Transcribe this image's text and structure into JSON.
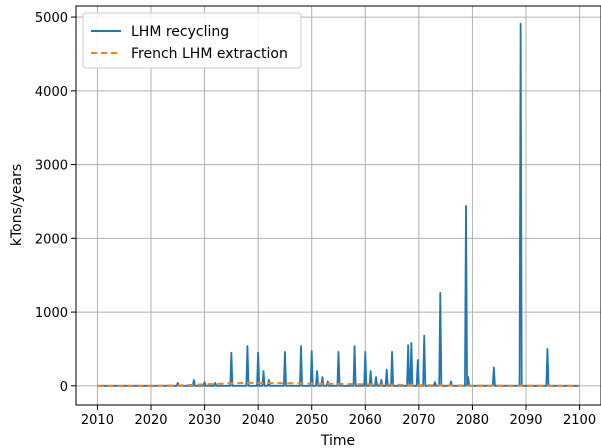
{
  "chart_data": {
    "type": "line",
    "xlabel": "Time",
    "ylabel": "kTons/years",
    "xlim": [
      2006,
      2104
    ],
    "ylim": [
      -260,
      5150
    ],
    "xticks": [
      2010,
      2020,
      2030,
      2040,
      2050,
      2060,
      2070,
      2080,
      2090,
      2100
    ],
    "yticks": [
      0,
      1000,
      2000,
      3000,
      4000,
      5000
    ],
    "grid": true,
    "legend_position": "top-left",
    "series": [
      {
        "name": "LHM recycling",
        "color": "#1f77b4",
        "style": "solid",
        "x": [
          2010,
          2024.8,
          2025,
          2025.2,
          2027.8,
          2028,
          2028.2,
          2029.8,
          2030,
          2030.2,
          2031.8,
          2032,
          2032.2,
          2034.8,
          2035,
          2035.2,
          2037.8,
          2038,
          2038.2,
          2039.8,
          2040,
          2040.2,
          2040.8,
          2041,
          2041.2,
          2041.8,
          2042,
          2042.2,
          2044.8,
          2045,
          2045.2,
          2047.8,
          2048,
          2048.2,
          2049.8,
          2050,
          2050.2,
          2050.8,
          2051,
          2051.2,
          2051.8,
          2052,
          2052.2,
          2052.8,
          2053,
          2053.2,
          2054.8,
          2055,
          2055.2,
          2057.8,
          2058,
          2058.2,
          2059.8,
          2060,
          2060.2,
          2060.8,
          2061,
          2061.2,
          2061.8,
          2062,
          2062.2,
          2062.8,
          2063,
          2063.2,
          2063.8,
          2064,
          2064.2,
          2064.8,
          2065,
          2065.2,
          2067.8,
          2068,
          2068.2,
          2068.4,
          2068.6,
          2068.8,
          2069.6,
          2069.8,
          2070,
          2070.8,
          2071,
          2071.2,
          2072.8,
          2073,
          2073.2,
          2073.8,
          2074,
          2074.2,
          2075.8,
          2076,
          2076.2,
          2078.6,
          2078.8,
          2079,
          2079.2,
          2079.4,
          2083.8,
          2084,
          2084.2,
          2088.8,
          2089,
          2089.2,
          2093.8,
          2094,
          2094.2,
          2100
        ],
        "y": [
          0,
          0,
          40,
          0,
          0,
          80,
          0,
          0,
          50,
          0,
          0,
          40,
          0,
          0,
          450,
          0,
          0,
          540,
          0,
          0,
          450,
          0,
          0,
          200,
          0,
          0,
          80,
          0,
          0,
          460,
          0,
          0,
          540,
          0,
          0,
          470,
          0,
          0,
          200,
          0,
          0,
          120,
          0,
          0,
          60,
          0,
          0,
          460,
          0,
          0,
          540,
          0,
          0,
          460,
          0,
          0,
          200,
          0,
          0,
          120,
          0,
          0,
          80,
          0,
          0,
          220,
          0,
          0,
          460,
          0,
          0,
          550,
          0,
          0,
          580,
          0,
          0,
          350,
          0,
          0,
          680,
          0,
          0,
          50,
          0,
          0,
          1260,
          0,
          0,
          60,
          0,
          0,
          2440,
          0,
          120,
          0,
          0,
          250,
          0,
          0,
          4910,
          0,
          0,
          500,
          0,
          0
        ]
      },
      {
        "name": "French LHM extraction",
        "color": "#ff7f0e",
        "style": "dashed",
        "x": [
          2010,
          2020,
          2025,
          2030,
          2035,
          2040,
          2045,
          2050,
          2055,
          2060,
          2065,
          2070,
          2075,
          2080,
          2085,
          2090,
          2095,
          2100
        ],
        "y": [
          0,
          0,
          5,
          20,
          35,
          40,
          35,
          30,
          25,
          20,
          15,
          10,
          5,
          3,
          2,
          1,
          1,
          0
        ]
      }
    ]
  }
}
